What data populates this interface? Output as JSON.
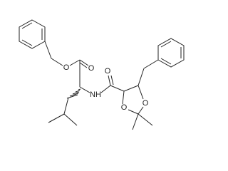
{
  "atoms": [
    {
      "label": "O"
    },
    {
      "label": "O"
    },
    {
      "label": "NH"
    },
    {
      "label": "O"
    },
    {
      "label": "O"
    },
    {
      "label": "O"
    }
  ]
}
